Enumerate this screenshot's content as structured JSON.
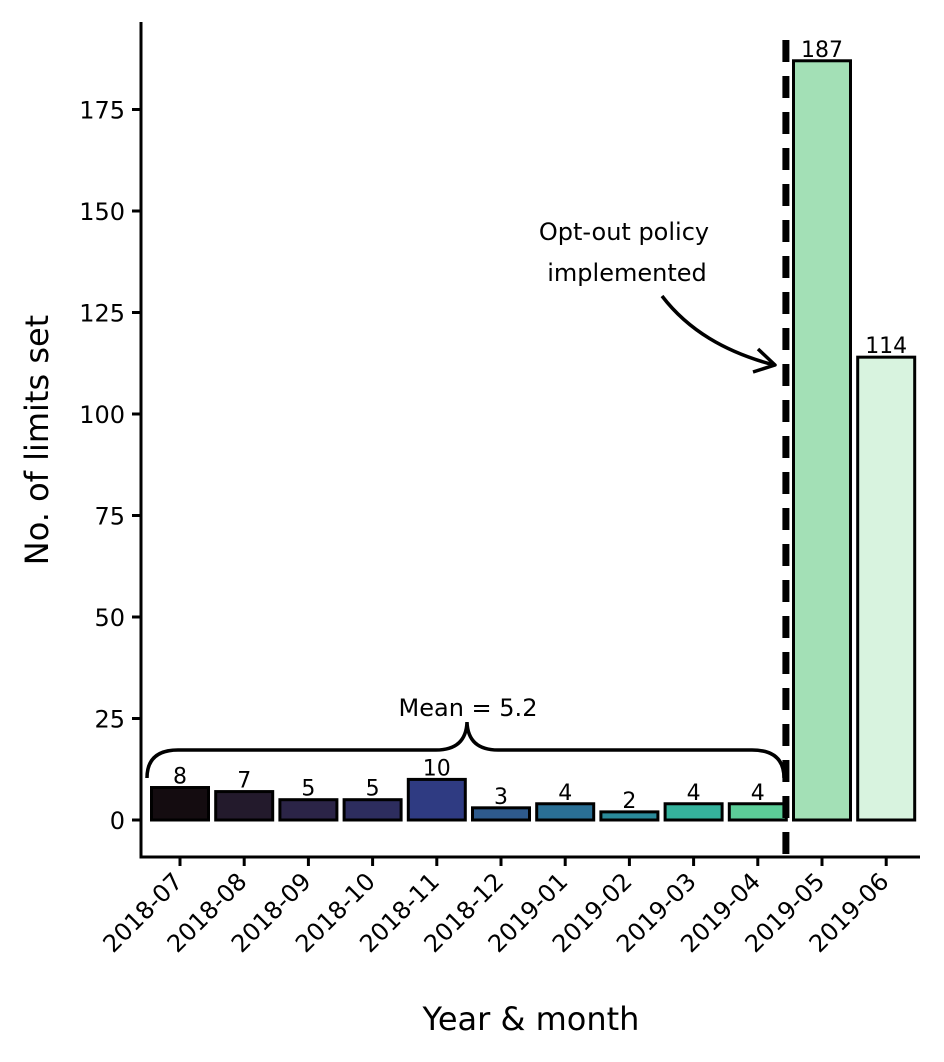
{
  "chart_data": {
    "type": "bar",
    "categories": [
      "2018-07",
      "2018-08",
      "2018-09",
      "2018-10",
      "2018-11",
      "2018-12",
      "2019-01",
      "2019-02",
      "2019-03",
      "2019-04",
      "2019-05",
      "2019-06"
    ],
    "values": [
      8,
      7,
      5,
      5,
      10,
      3,
      4,
      2,
      4,
      4,
      187,
      114
    ],
    "bar_colors": [
      "#140c10",
      "#231a2c",
      "#2b2447",
      "#2d2d5e",
      "#2f3b82",
      "#2e5a8c",
      "#2a6f95",
      "#2a8a9a",
      "#35b29c",
      "#5ccd98",
      "#a3e0b6",
      "#d8f3df"
    ],
    "xlabel": "Year & month",
    "ylabel": "No. of limits set",
    "yticks": [
      0,
      25,
      50,
      75,
      100,
      125,
      150,
      175
    ],
    "ylim": [
      -9,
      196
    ],
    "grid": false,
    "legend": "none",
    "annotations": {
      "policy_text_line1": "Opt-out policy",
      "policy_text_line2": "implemented",
      "policy_after_category": "2019-04",
      "mean_text": "Mean = 5.2"
    }
  }
}
